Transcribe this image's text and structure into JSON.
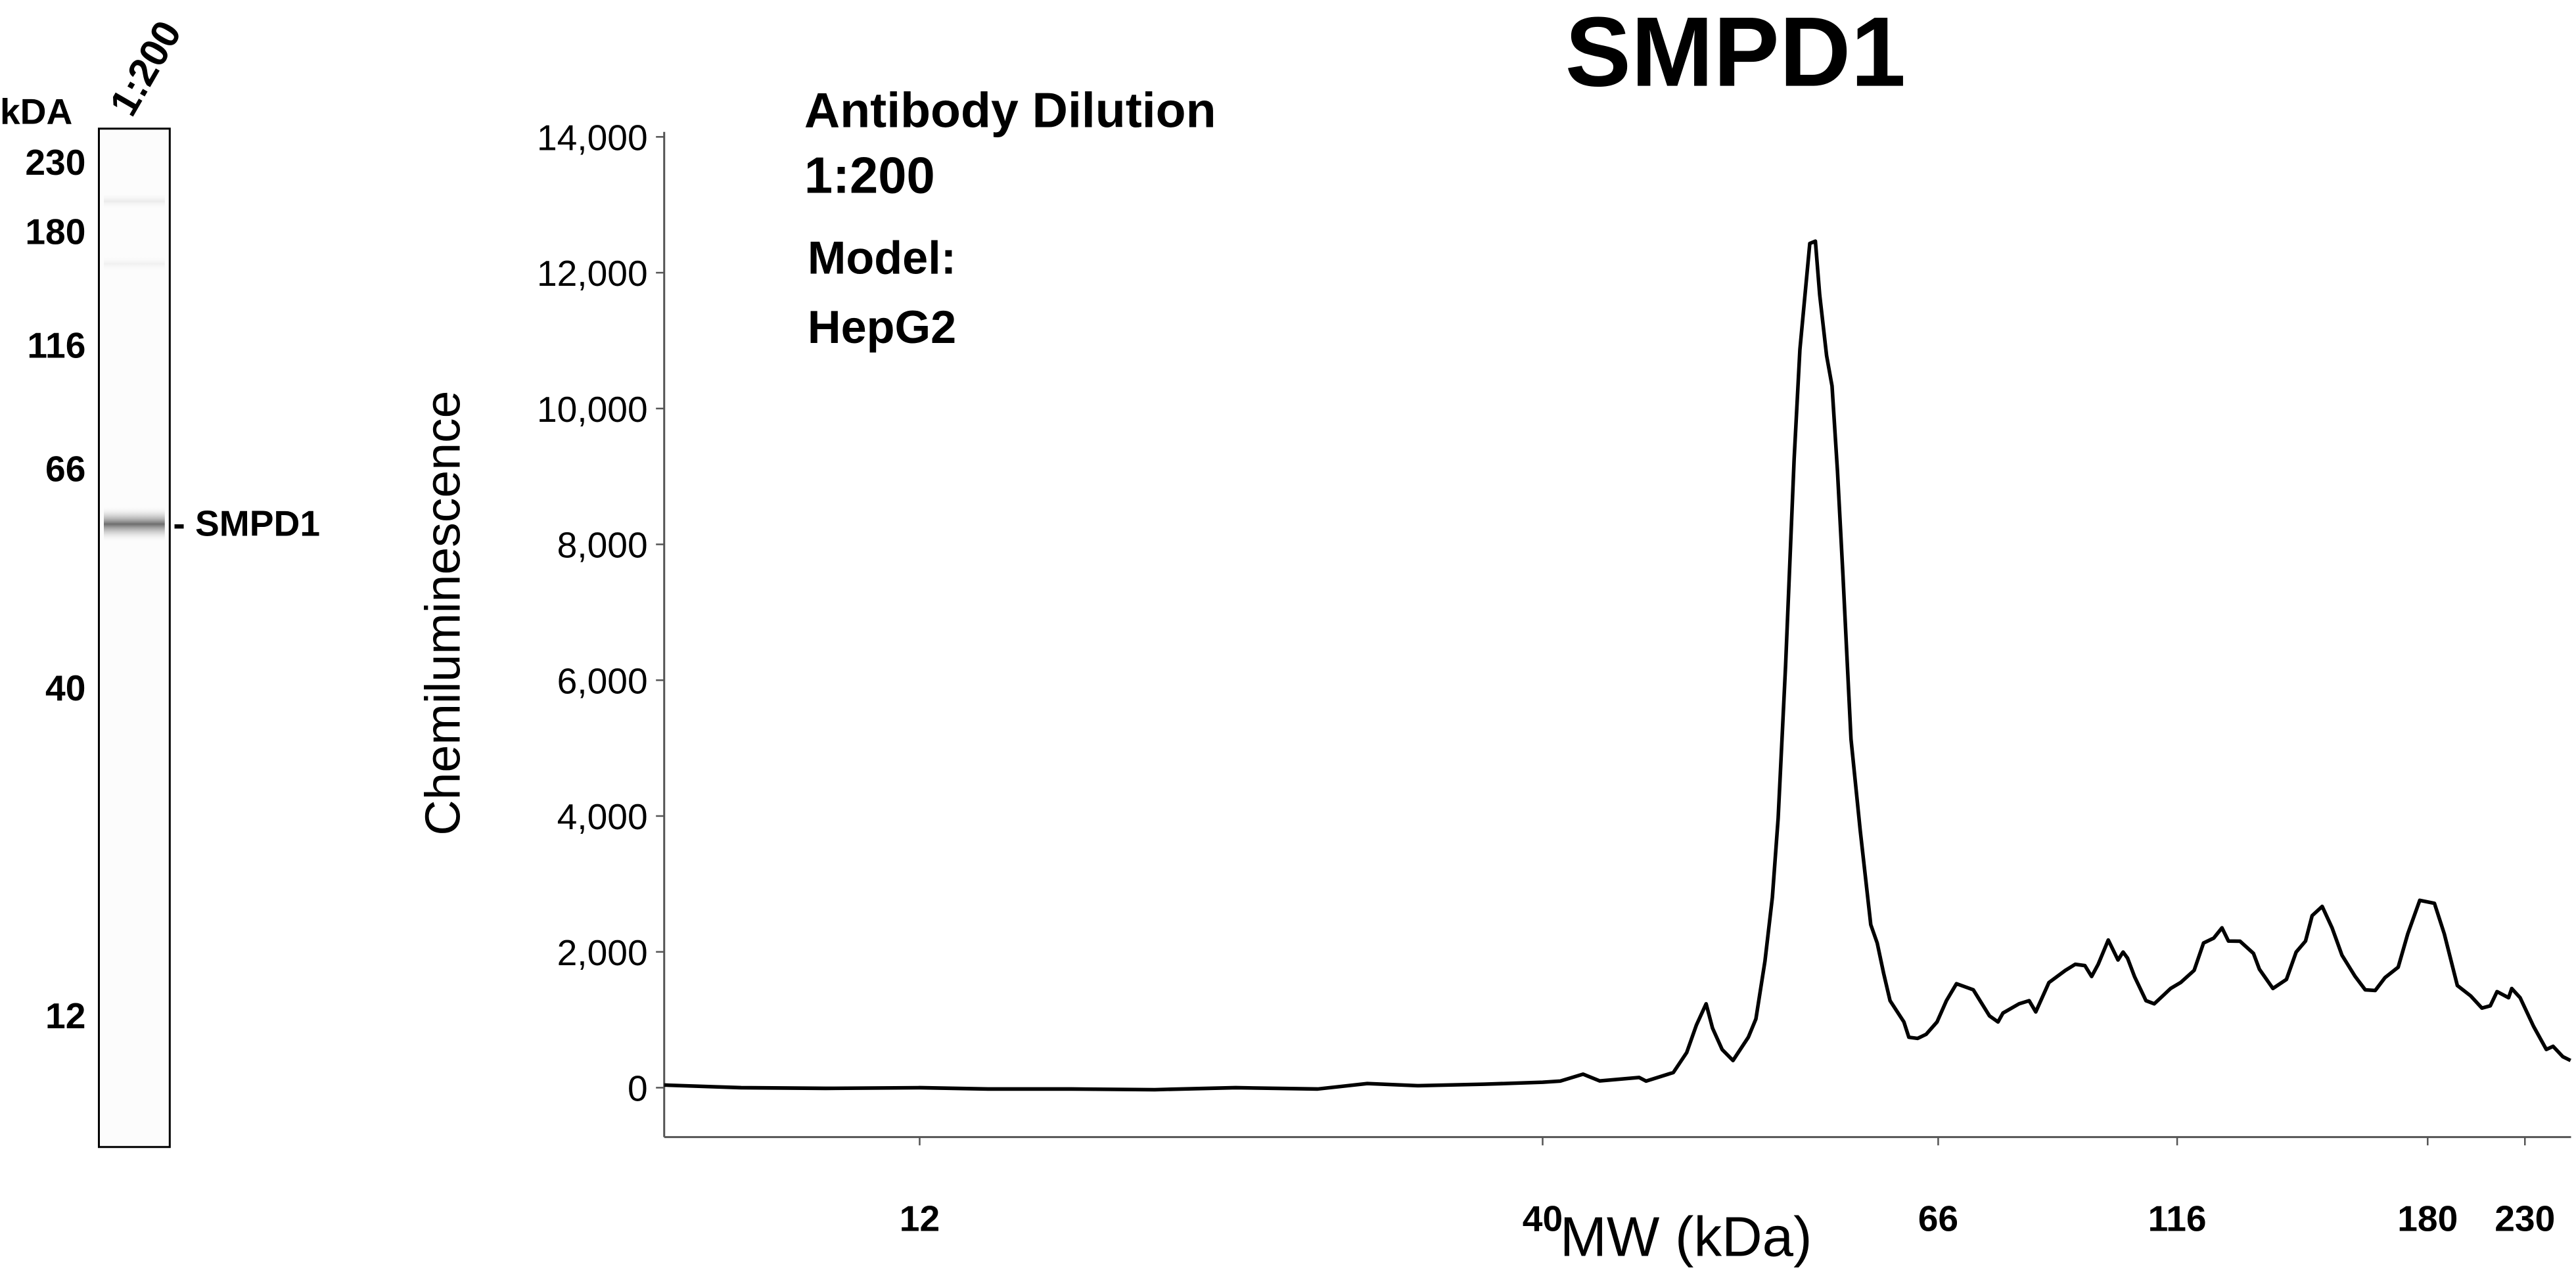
{
  "lane": {
    "unit_label": "kDA",
    "lane_label": "1:200",
    "markers": [
      "230",
      "180",
      "116",
      "66",
      "40",
      "12"
    ],
    "band_label": "- SMPD1"
  },
  "annotations": {
    "line1": "Antibody Dilution",
    "line2": "1:200",
    "line3": "Model:",
    "line4": "HepG2"
  },
  "chart_data": {
    "type": "line",
    "title": "SMPD1",
    "xlabel": "MW (kDa)",
    "ylabel": "Chemiluminescence",
    "x_scale": "log (non-uniform electropherogram)",
    "xlim": [
      7.3,
      258
    ],
    "ylim": [
      -700,
      14000
    ],
    "x_ticks": [
      "12",
      "40",
      "66",
      "116",
      "180",
      "230"
    ],
    "y_ticks": [
      "0",
      "2,000",
      "4,000",
      "6,000",
      "8,000",
      "10,000",
      "12,000",
      "14,000"
    ],
    "y_tick_values": [
      0,
      2000,
      4000,
      6000,
      8000,
      10000,
      12000,
      14000
    ],
    "grid": false,
    "line_color": "#000000",
    "series": [
      {
        "points": [
          [
            7.3,
            40
          ],
          [
            8.5,
            0
          ],
          [
            10.0,
            -10
          ],
          [
            12.0,
            0
          ],
          [
            13.7,
            -20
          ],
          [
            16.1,
            -20
          ],
          [
            18.9,
            -30
          ],
          [
            22.1,
            0
          ],
          [
            25.9,
            -20
          ],
          [
            28.5,
            60
          ],
          [
            31.4,
            30
          ],
          [
            35.7,
            50
          ],
          [
            40.0,
            80
          ],
          [
            40.9,
            97
          ],
          [
            42.1,
            200
          ],
          [
            43.0,
            100
          ],
          [
            45.2,
            150
          ],
          [
            45.6,
            97
          ],
          [
            47.2,
            223
          ],
          [
            48.0,
            517
          ],
          [
            48.6,
            921
          ],
          [
            49.2,
            1234
          ],
          [
            49.6,
            877
          ],
          [
            50.2,
            563
          ],
          [
            50.9,
            401
          ],
          [
            51.9,
            743
          ],
          [
            52.4,
            1011
          ],
          [
            53.0,
            1863
          ],
          [
            53.5,
            2804
          ],
          [
            53.9,
            3968
          ],
          [
            54.4,
            6208
          ],
          [
            55.0,
            9256
          ],
          [
            55.4,
            10869
          ],
          [
            56.1,
            12429
          ],
          [
            56.5,
            12463
          ],
          [
            56.8,
            11676
          ],
          [
            57.3,
            10779
          ],
          [
            57.7,
            10332
          ],
          [
            58.1,
            9076
          ],
          [
            58.5,
            7552
          ],
          [
            59.1,
            5134
          ],
          [
            59.8,
            3788
          ],
          [
            60.6,
            2400
          ],
          [
            61.1,
            2131
          ],
          [
            61.6,
            1684
          ],
          [
            62.1,
            1280
          ],
          [
            63.2,
            967
          ],
          [
            63.6,
            743
          ],
          [
            64.3,
            726
          ],
          [
            65.0,
            787
          ],
          [
            65.9,
            967
          ],
          [
            67.3,
            1280
          ],
          [
            68.9,
            1531
          ],
          [
            71.7,
            1441
          ],
          [
            74.5,
            1057
          ],
          [
            76.0,
            967
          ],
          [
            76.9,
            1100
          ],
          [
            79.9,
            1234
          ],
          [
            81.8,
            1280
          ],
          [
            83.1,
            1117
          ],
          [
            85.7,
            1548
          ],
          [
            89.1,
            1727
          ],
          [
            91.2,
            1817
          ],
          [
            93.3,
            1799
          ],
          [
            94.8,
            1637
          ],
          [
            96.3,
            1817
          ],
          [
            98.6,
            2174
          ],
          [
            100.9,
            1880
          ],
          [
            102.1,
            1997
          ],
          [
            103.2,
            1907
          ],
          [
            104.9,
            1637
          ],
          [
            107.8,
            1280
          ],
          [
            109.9,
            1234
          ],
          [
            112.5,
            1370
          ],
          [
            114.2,
            1460
          ],
          [
            116.7,
            1548
          ],
          [
            119.5,
            1727
          ],
          [
            121.5,
            2131
          ],
          [
            123.7,
            2204
          ],
          [
            125.5,
            2354
          ],
          [
            126.9,
            2160
          ],
          [
            129.5,
            2156
          ],
          [
            132.6,
            1978
          ],
          [
            134.0,
            1744
          ],
          [
            137.2,
            1460
          ],
          [
            140.5,
            1594
          ],
          [
            142.9,
            1997
          ],
          [
            145.3,
            2160
          ],
          [
            147.0,
            2534
          ],
          [
            149.6,
            2670
          ],
          [
            152.2,
            2354
          ],
          [
            154.9,
            1951
          ],
          [
            158.5,
            1637
          ],
          [
            161.3,
            1441
          ],
          [
            164.2,
            1432
          ],
          [
            167.0,
            1620
          ],
          [
            170.9,
            1774
          ],
          [
            173.8,
            2264
          ],
          [
            177.5,
            2758
          ],
          [
            183.1,
            2714
          ],
          [
            187.7,
            2264
          ],
          [
            194.0,
            1504
          ],
          [
            200.6,
            1351
          ],
          [
            206.4,
            1173
          ],
          [
            210.8,
            1207
          ],
          [
            214.4,
            1414
          ],
          [
            220.7,
            1324
          ],
          [
            222.5,
            1460
          ],
          [
            227.2,
            1324
          ],
          [
            235.0,
            904
          ],
          [
            242.8,
            563
          ],
          [
            246.9,
            609
          ],
          [
            253.1,
            456
          ],
          [
            258.0,
            400
          ]
        ]
      }
    ]
  }
}
